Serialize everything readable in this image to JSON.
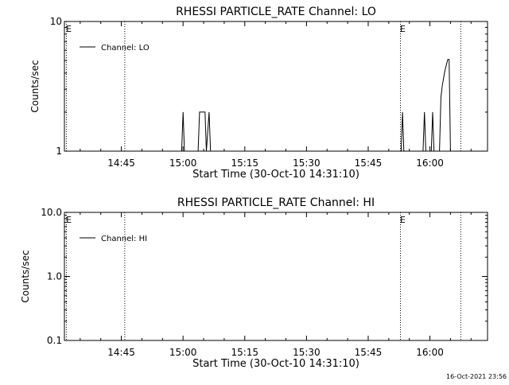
{
  "footer": {
    "timestamp": "16-Oct-2021 23:56"
  },
  "chart_data": [
    {
      "type": "line",
      "title": "RHESSI PARTICLE_RATE Channel: LO",
      "xlabel": "Start Time (30-Oct-10 14:31:10)",
      "ylabel": "Counts/sec",
      "y_scale": "log",
      "ylim": [
        1,
        10
      ],
      "xlim": [
        "14:31:10",
        "16:14:00"
      ],
      "x_ticks": [
        "14:45",
        "15:00",
        "15:15",
        "15:30",
        "15:45",
        "16:00"
      ],
      "y_ticks": [
        "1",
        "10"
      ],
      "legend": {
        "position": "top-left",
        "entries": [
          "Channel: LO"
        ]
      },
      "markers": [
        {
          "time": "14:31:40",
          "label": "E"
        },
        {
          "time": "14:45:50",
          "label": ""
        },
        {
          "time": "15:52:50",
          "label": "E"
        },
        {
          "time": "16:07:30",
          "label": ""
        }
      ],
      "series": [
        {
          "name": "Channel: LO",
          "x": [
            "14:59:40",
            "15:00:00",
            "15:00:20",
            "15:00:40",
            "15:03:40",
            "15:04:00",
            "15:04:20",
            "15:05:20",
            "15:05:40",
            "15:06:20",
            "15:06:40",
            "15:53:00",
            "15:53:20",
            "15:53:40",
            "15:58:20",
            "15:58:40",
            "15:59:00",
            "16:00:20",
            "16:00:40",
            "16:01:00",
            "16:02:20",
            "16:02:40",
            "16:03:00",
            "16:03:40",
            "16:04:20",
            "16:04:40",
            "16:05:00"
          ],
          "y": [
            1,
            2,
            1,
            1,
            1,
            2,
            2,
            2,
            1,
            2,
            1,
            1,
            2,
            1,
            1,
            2,
            1,
            1,
            2,
            1,
            1,
            2.6,
            3.2,
            4.2,
            5.1,
            5.1,
            1
          ]
        }
      ]
    },
    {
      "type": "line",
      "title": "RHESSI PARTICLE_RATE Channel: HI",
      "xlabel": "Start Time (30-Oct-10 14:31:10)",
      "ylabel": "Counts/sec",
      "y_scale": "log",
      "ylim": [
        0.1,
        10
      ],
      "xlim": [
        "14:31:10",
        "16:14:00"
      ],
      "x_ticks": [
        "14:45",
        "15:00",
        "15:15",
        "15:30",
        "15:45",
        "16:00"
      ],
      "y_ticks": [
        "0.1",
        "1.0",
        "10.0"
      ],
      "legend": {
        "position": "top-left",
        "entries": [
          "Channel: HI"
        ]
      },
      "markers": [
        {
          "time": "14:31:40",
          "label": "E"
        },
        {
          "time": "14:45:50",
          "label": ""
        },
        {
          "time": "15:52:50",
          "label": "E"
        },
        {
          "time": "16:07:30",
          "label": ""
        }
      ],
      "series": [
        {
          "name": "Channel: HI",
          "x": [],
          "y": []
        }
      ]
    }
  ]
}
